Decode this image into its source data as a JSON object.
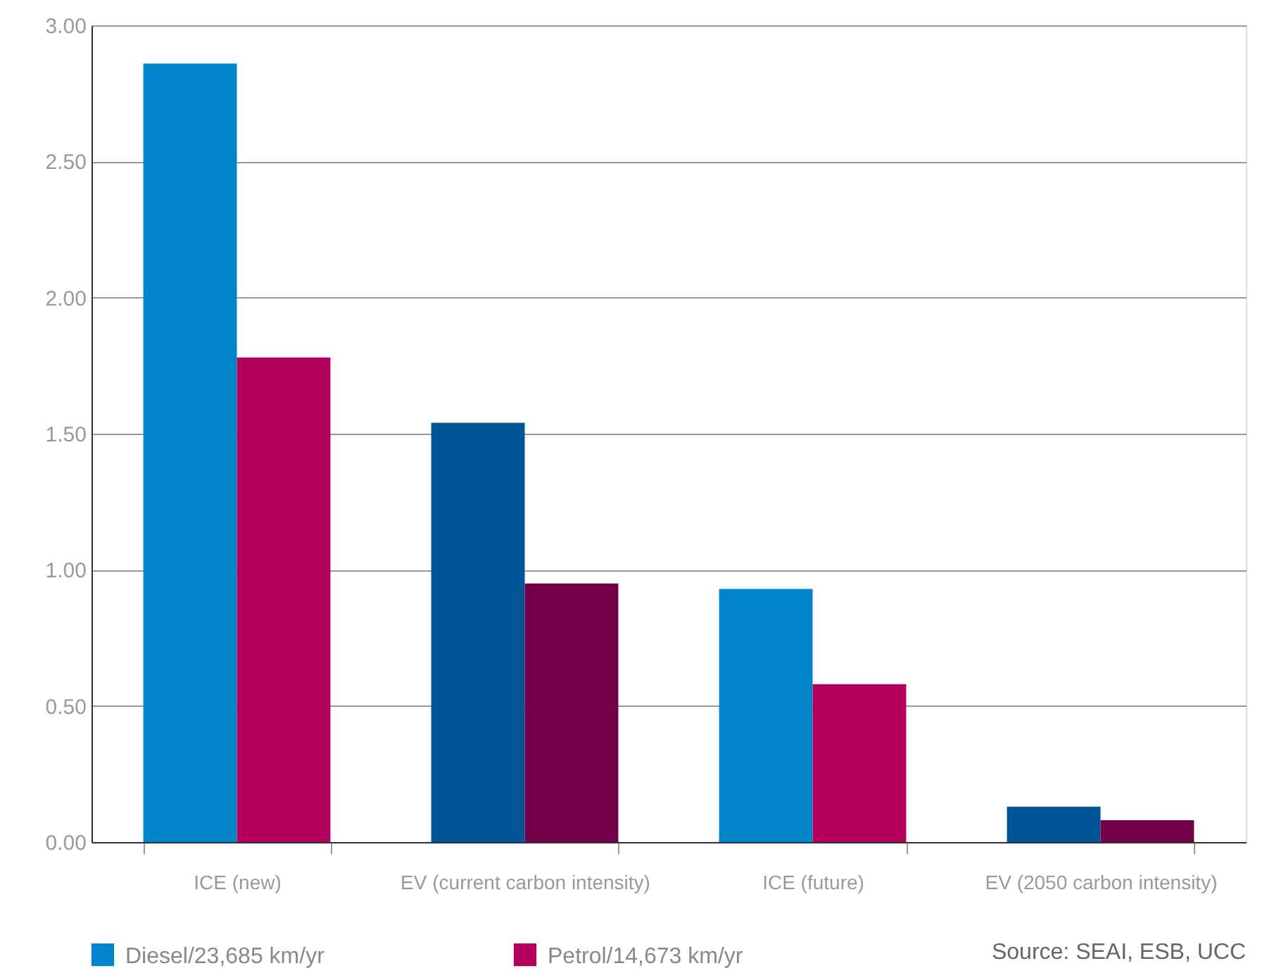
{
  "chart_data": {
    "type": "bar",
    "categories": [
      "ICE (new)",
      "EV (current carbon intensity)",
      "ICE (future)",
      "EV (2050 carbon intensity)"
    ],
    "series": [
      {
        "name": "Diesel/23,685 km/yr",
        "color": "#0085cc",
        "colors": [
          "#0085cc",
          "#005596",
          "#0085cc",
          "#005596"
        ],
        "values": [
          2.86,
          1.54,
          0.93,
          0.13
        ]
      },
      {
        "name": "Petrol/14,673 km/yr",
        "color": "#b3005e",
        "colors": [
          "#b3005e",
          "#730046",
          "#b3005e",
          "#730046"
        ],
        "values": [
          1.78,
          0.95,
          0.58,
          0.08
        ]
      }
    ],
    "ylim": [
      0,
      3
    ],
    "yticks": [
      {
        "value": 0,
        "label": "0.00"
      },
      {
        "value": 0.5,
        "label": "0.50"
      },
      {
        "value": 1,
        "label": "1.00"
      },
      {
        "value": 1.5,
        "label": "1.50"
      },
      {
        "value": 2,
        "label": "2.00"
      },
      {
        "value": 2.5,
        "label": "2.50"
      },
      {
        "value": 3,
        "label": "3.00"
      }
    ],
    "grid": "y",
    "legend": "bottom left",
    "annotations": [
      "Source: SEAI, ESB, UCC"
    ]
  }
}
